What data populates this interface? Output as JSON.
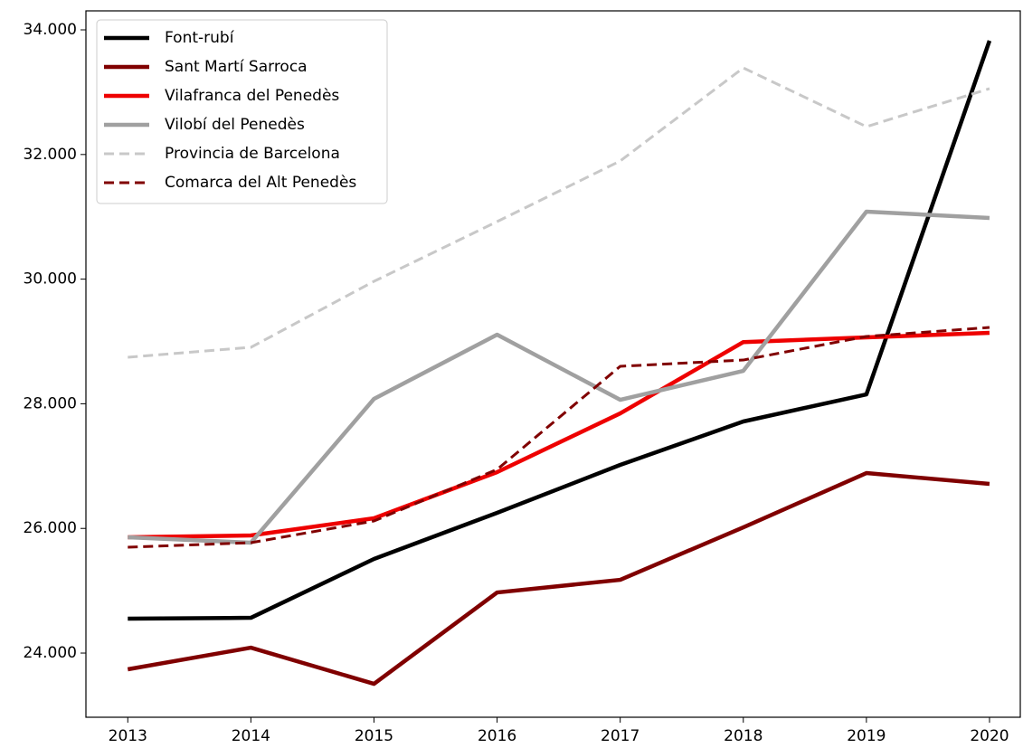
{
  "chart_data": {
    "type": "line",
    "x": [
      2013,
      2014,
      2015,
      2016,
      2017,
      2018,
      2019,
      2020
    ],
    "series": [
      {
        "name": "Font-rubí",
        "color": "#000000",
        "dashed": false,
        "values": [
          24552,
          24566,
          25510,
          26250,
          27019,
          27716,
          28151,
          33826
        ]
      },
      {
        "name": "Sant Martí Sarroca",
        "color": "#800000",
        "dashed": false,
        "values": [
          23739,
          24087,
          23506,
          24972,
          25175,
          26017,
          26888,
          26714
        ]
      },
      {
        "name": "Vilafranca del Penedès",
        "color": "#ee0000",
        "dashed": false,
        "values": [
          25858,
          25887,
          26163,
          26903,
          27846,
          28990,
          29065,
          29138
        ]
      },
      {
        "name": "Vilobí del Penedès",
        "color": "#a0a0a0",
        "dashed": false,
        "values": [
          25858,
          25771,
          28079,
          29109,
          28064,
          28528,
          31083,
          30981
        ]
      },
      {
        "name": "Provincia de Barcelona",
        "color": "#c8c8c8",
        "dashed": true,
        "values": [
          28746,
          28906,
          29965,
          30923,
          31896,
          33390,
          32447,
          33057
        ]
      },
      {
        "name": "Comarca del Alt Penedès",
        "color": "#800000",
        "dashed": true,
        "values": [
          25698,
          25771,
          26119,
          26946,
          28601,
          28702,
          29080,
          29225
        ]
      }
    ],
    "xlim": [
      2012.66,
      2020.25
    ],
    "xticks": [
      2013,
      2014,
      2015,
      2016,
      2017,
      2018,
      2019,
      2020
    ],
    "ylim": [
      22970,
      34305
    ],
    "yticks": [
      {
        "value": 24000,
        "label": "24.000"
      },
      {
        "value": 26000,
        "label": "26.000"
      },
      {
        "value": 28000,
        "label": "28.000"
      },
      {
        "value": 30000,
        "label": "30.000"
      },
      {
        "value": 32000,
        "label": "32.000"
      },
      {
        "value": 34000,
        "label": "34.000"
      }
    ],
    "grid": false,
    "legend": "upper left"
  }
}
